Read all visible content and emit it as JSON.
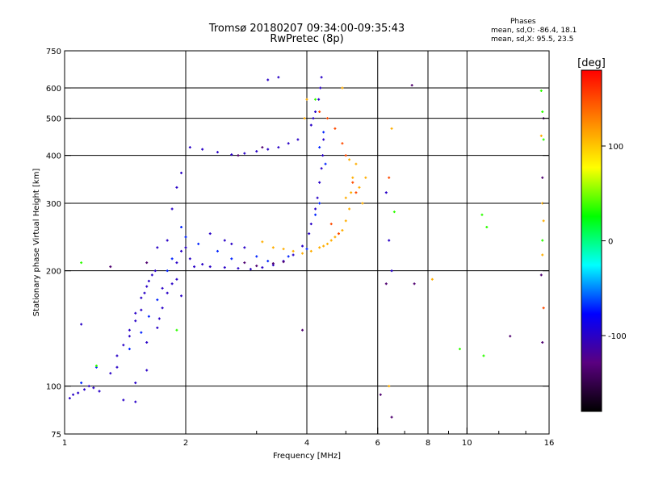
{
  "title_line1": "Tromsø 20180207 09:34:00-09:35:43",
  "title_line2": "RwPretec (8p)",
  "phases": {
    "heading": "Phases",
    "o_mode": "mean, sd,O: -86.4, 18.1",
    "x_mode": "mean, sd,X:  95.5, 23.5"
  },
  "chart_data": {
    "type": "scatter",
    "xlabel": "Frequency [MHz]",
    "ylabel": "Stationary phase Virtual Height [km]",
    "x_scale": "log",
    "y_scale": "log",
    "xlim": [
      1,
      16
    ],
    "ylim": [
      75,
      750
    ],
    "x_ticks": [
      1,
      2,
      4,
      6,
      8,
      10,
      16
    ],
    "x_minor_ticks": [
      3,
      5,
      7,
      9,
      12,
      14
    ],
    "y_ticks": [
      75,
      100,
      200,
      300,
      400,
      500,
      600,
      750
    ],
    "grid_x": [
      2,
      4,
      6,
      8,
      10
    ],
    "grid_y": [
      100,
      200,
      300,
      400,
      500,
      600
    ],
    "colorbar": {
      "label": "[deg]",
      "range": [
        -180,
        180
      ],
      "ticks": [
        100,
        0,
        -100
      ],
      "colors": [
        "#000000",
        "#5a0080",
        "#0000ff",
        "#00ffff",
        "#00ff00",
        "#ffff00",
        "#ff8000",
        "#ff0000"
      ]
    },
    "series": [
      {
        "phase_deg": -100,
        "points": [
          [
            1.03,
            93
          ],
          [
            1.05,
            95
          ],
          [
            1.08,
            96
          ],
          [
            1.12,
            98
          ],
          [
            1.15,
            100
          ],
          [
            1.18,
            99
          ],
          [
            1.22,
            97
          ],
          [
            1.4,
            92
          ],
          [
            1.5,
            91
          ],
          [
            1.1,
            145
          ],
          [
            1.35,
            120
          ],
          [
            1.4,
            128
          ],
          [
            1.45,
            140
          ],
          [
            1.5,
            155
          ],
          [
            1.55,
            170
          ],
          [
            1.6,
            182
          ],
          [
            1.65,
            195
          ],
          [
            1.45,
            135
          ],
          [
            1.5,
            148
          ],
          [
            1.55,
            158
          ],
          [
            1.58,
            175
          ],
          [
            1.62,
            188
          ],
          [
            1.68,
            200
          ],
          [
            1.72,
            150
          ],
          [
            1.75,
            160
          ],
          [
            1.3,
            108
          ],
          [
            1.35,
            112
          ],
          [
            1.6,
            130
          ],
          [
            1.7,
            142
          ],
          [
            1.8,
            175
          ],
          [
            1.85,
            185
          ],
          [
            1.9,
            190
          ],
          [
            1.95,
            172
          ],
          [
            1.9,
            210
          ],
          [
            1.95,
            225
          ],
          [
            2.0,
            230
          ],
          [
            2.05,
            215
          ],
          [
            2.1,
            205
          ],
          [
            2.2,
            208
          ],
          [
            2.3,
            205
          ],
          [
            2.5,
            204
          ],
          [
            2.7,
            203
          ],
          [
            2.9,
            202
          ],
          [
            3.1,
            204
          ],
          [
            3.3,
            207
          ],
          [
            3.5,
            212
          ],
          [
            3.7,
            220
          ],
          [
            3.9,
            232
          ],
          [
            4.05,
            250
          ],
          [
            4.1,
            265
          ],
          [
            4.2,
            290
          ],
          [
            4.25,
            310
          ],
          [
            4.3,
            340
          ],
          [
            4.35,
            370
          ],
          [
            4.38,
            400
          ],
          [
            4.4,
            440
          ],
          [
            4.1,
            480
          ],
          [
            4.15,
            500
          ],
          [
            4.2,
            520
          ],
          [
            4.28,
            560
          ],
          [
            4.32,
            600
          ],
          [
            4.35,
            640
          ],
          [
            3.8,
            440
          ],
          [
            3.6,
            430
          ],
          [
            3.4,
            420
          ],
          [
            3.2,
            415
          ],
          [
            3.0,
            410
          ],
          [
            2.8,
            405
          ],
          [
            2.6,
            402
          ],
          [
            2.4,
            408
          ],
          [
            2.2,
            415
          ],
          [
            2.05,
            420
          ],
          [
            1.9,
            330
          ],
          [
            1.95,
            360
          ],
          [
            1.85,
            290
          ],
          [
            1.8,
            240
          ],
          [
            1.7,
            230
          ],
          [
            2.3,
            250
          ],
          [
            2.5,
            240
          ],
          [
            2.6,
            235
          ],
          [
            2.8,
            230
          ],
          [
            3.4,
            640
          ],
          [
            3.2,
            630
          ],
          [
            6.4,
            240
          ],
          [
            6.3,
            320
          ],
          [
            6.5,
            200
          ],
          [
            1.75,
            180
          ],
          [
            1.6,
            110
          ],
          [
            1.5,
            102
          ]
        ]
      },
      {
        "phase_deg": -70,
        "points": [
          [
            1.1,
            102
          ],
          [
            1.2,
            112
          ],
          [
            1.45,
            125
          ],
          [
            1.55,
            138
          ],
          [
            1.62,
            152
          ],
          [
            1.7,
            168
          ],
          [
            1.8,
            200
          ],
          [
            1.85,
            215
          ],
          [
            1.95,
            260
          ],
          [
            2.0,
            245
          ],
          [
            2.15,
            235
          ],
          [
            2.4,
            225
          ],
          [
            2.6,
            215
          ],
          [
            3.0,
            218
          ],
          [
            3.2,
            212
          ],
          [
            3.6,
            218
          ],
          [
            4.0,
            228
          ],
          [
            4.2,
            280
          ],
          [
            4.3,
            420
          ],
          [
            4.4,
            460
          ],
          [
            4.3,
            300
          ],
          [
            4.45,
            380
          ]
        ]
      },
      {
        "phase_deg": -135,
        "points": [
          [
            1.3,
            205
          ],
          [
            1.6,
            210
          ],
          [
            2.8,
            210
          ],
          [
            3.0,
            206
          ],
          [
            3.3,
            209
          ],
          [
            3.5,
            211
          ],
          [
            3.1,
            420
          ],
          [
            2.7,
            400
          ],
          [
            3.9,
            140
          ],
          [
            6.1,
            95
          ],
          [
            6.3,
            185
          ],
          [
            7.4,
            185
          ],
          [
            7.3,
            610
          ],
          [
            12.8,
            135
          ],
          [
            15.3,
            195
          ],
          [
            15.4,
            350
          ],
          [
            15.5,
            500
          ],
          [
            15.4,
            130
          ],
          [
            6.5,
            83
          ]
        ]
      },
      {
        "phase_deg": 35,
        "points": [
          [
            1.1,
            210
          ],
          [
            1.2,
            113
          ],
          [
            1.9,
            140
          ],
          [
            15.4,
            520
          ],
          [
            15.5,
            440
          ],
          [
            15.3,
            590
          ],
          [
            15.4,
            240
          ],
          [
            11.2,
            260
          ],
          [
            10.9,
            280
          ],
          [
            9.6,
            125
          ],
          [
            11.0,
            120
          ],
          [
            6.6,
            285
          ],
          [
            4.2,
            560
          ]
        ]
      },
      {
        "phase_deg": 110,
        "points": [
          [
            3.1,
            238
          ],
          [
            3.3,
            230
          ],
          [
            3.5,
            228
          ],
          [
            3.7,
            225
          ],
          [
            3.9,
            222
          ],
          [
            4.1,
            225
          ],
          [
            4.3,
            230
          ],
          [
            4.5,
            235
          ],
          [
            4.7,
            245
          ],
          [
            4.9,
            255
          ],
          [
            5.0,
            270
          ],
          [
            5.1,
            290
          ],
          [
            5.15,
            320
          ],
          [
            5.2,
            350
          ],
          [
            5.1,
            390
          ],
          [
            5.0,
            310
          ],
          [
            4.8,
            250
          ],
          [
            4.6,
            240
          ],
          [
            4.4,
            232
          ],
          [
            5.4,
            330
          ],
          [
            5.5,
            300
          ],
          [
            5.3,
            380
          ],
          [
            5.6,
            350
          ],
          [
            4.0,
            560
          ],
          [
            3.95,
            500
          ],
          [
            4.9,
            600
          ],
          [
            6.5,
            470
          ],
          [
            6.4,
            100
          ],
          [
            8.2,
            190
          ],
          [
            15.4,
            300
          ],
          [
            15.5,
            270
          ],
          [
            15.3,
            450
          ],
          [
            15.4,
            220
          ]
        ]
      },
      {
        "phase_deg": 150,
        "points": [
          [
            4.3,
            520
          ],
          [
            4.5,
            500
          ],
          [
            4.7,
            470
          ],
          [
            4.9,
            430
          ],
          [
            5.0,
            400
          ],
          [
            5.2,
            340
          ],
          [
            5.3,
            320
          ],
          [
            4.6,
            265
          ],
          [
            4.8,
            250
          ],
          [
            6.4,
            350
          ],
          [
            15.5,
            160
          ]
        ]
      }
    ]
  }
}
